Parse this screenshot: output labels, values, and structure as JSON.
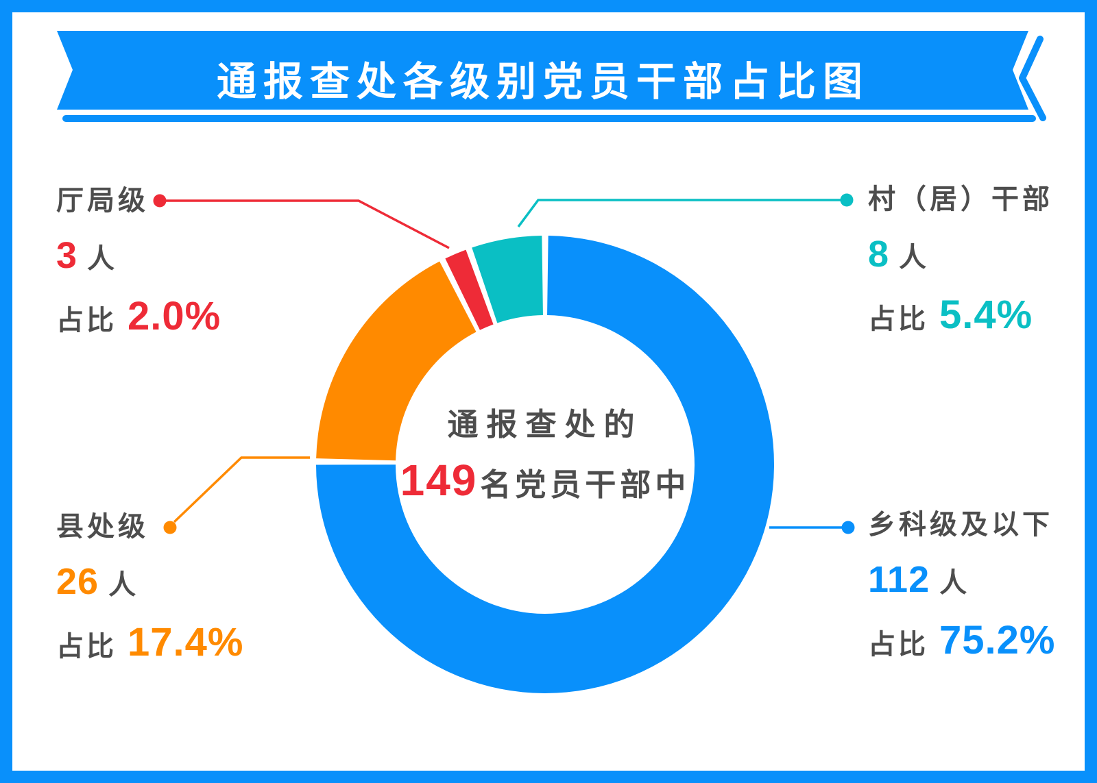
{
  "frame_color": "#0990FB",
  "banner": {
    "title": "通报查处各级别党员干部占比图",
    "bg_color": "#0990FB",
    "text_color": "#FFFFFF"
  },
  "center": {
    "line1": "通报查处的",
    "total": "149",
    "line2_suffix": "名党员干部中",
    "total_color": "#EE2B37",
    "text_color": "#4D4D4D"
  },
  "labels": {
    "unit": "人",
    "ratio_prefix": "占比",
    "name_color": "#4D4D4D"
  },
  "chart_data": {
    "type": "donut",
    "title": "通报查处各级别党员干部占比图",
    "total_people": 149,
    "start_angle_deg": 0,
    "direction": "clockwise",
    "legend_position": "callout-labels",
    "series": [
      {
        "name": "乡科级及以下",
        "count": "112",
        "pct": 75.2,
        "pct_text": "75.2%",
        "color": "#0990FB",
        "label_position": "bottom-right"
      },
      {
        "name": "县处级",
        "count": "26",
        "pct": 17.4,
        "pct_text": "17.4%",
        "color": "#FF8A00",
        "label_position": "bottom-left"
      },
      {
        "name": "厅局级",
        "count": "3",
        "pct": 2.0,
        "pct_text": "2.0%",
        "color": "#EE2B37",
        "label_position": "top-left"
      },
      {
        "name": "村（居）干部",
        "count": "8",
        "pct": 5.4,
        "pct_text": "5.4%",
        "color": "#0ABFC4",
        "label_position": "top-right"
      }
    ]
  }
}
